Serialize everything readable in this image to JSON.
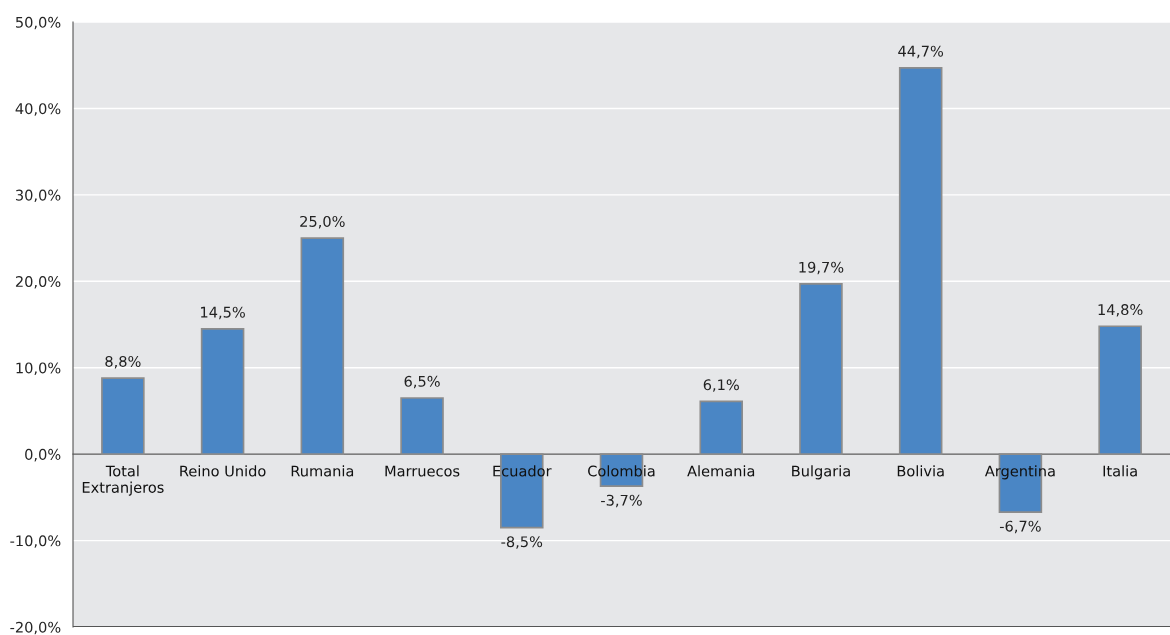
{
  "chart_data": {
    "type": "bar",
    "categories": [
      "Total\nExtranjeros",
      "Reino Unido",
      "Rumania",
      "Marruecos",
      "Ecuador",
      "Colombia",
      "Alemania",
      "Bulgaria",
      "Bolivia",
      "Argentina",
      "Italia"
    ],
    "values": [
      8.8,
      14.5,
      25.0,
      6.5,
      -8.5,
      -3.7,
      6.1,
      19.7,
      44.7,
      -6.7,
      14.8
    ],
    "value_labels": [
      "8,8%",
      "14,5%",
      "25,0%",
      "6,5%",
      "-8,5%",
      "-3,7%",
      "6,1%",
      "19,7%",
      "44,7%",
      "-6,7%",
      "14,8%"
    ],
    "color": "#4a86c5",
    "ylim": [
      -20,
      50
    ],
    "yticks": [
      {
        "value": -20,
        "label": "-20,0%"
      },
      {
        "value": -10,
        "label": "-10,0%"
      },
      {
        "value": 0,
        "label": "0,0%"
      },
      {
        "value": 10,
        "label": "10,0%"
      },
      {
        "value": 20,
        "label": "20,0%"
      },
      {
        "value": 30,
        "label": "30,0%"
      },
      {
        "value": 40,
        "label": "40,0%"
      },
      {
        "value": 50,
        "label": "50,0%"
      }
    ],
    "grid": "y"
  }
}
